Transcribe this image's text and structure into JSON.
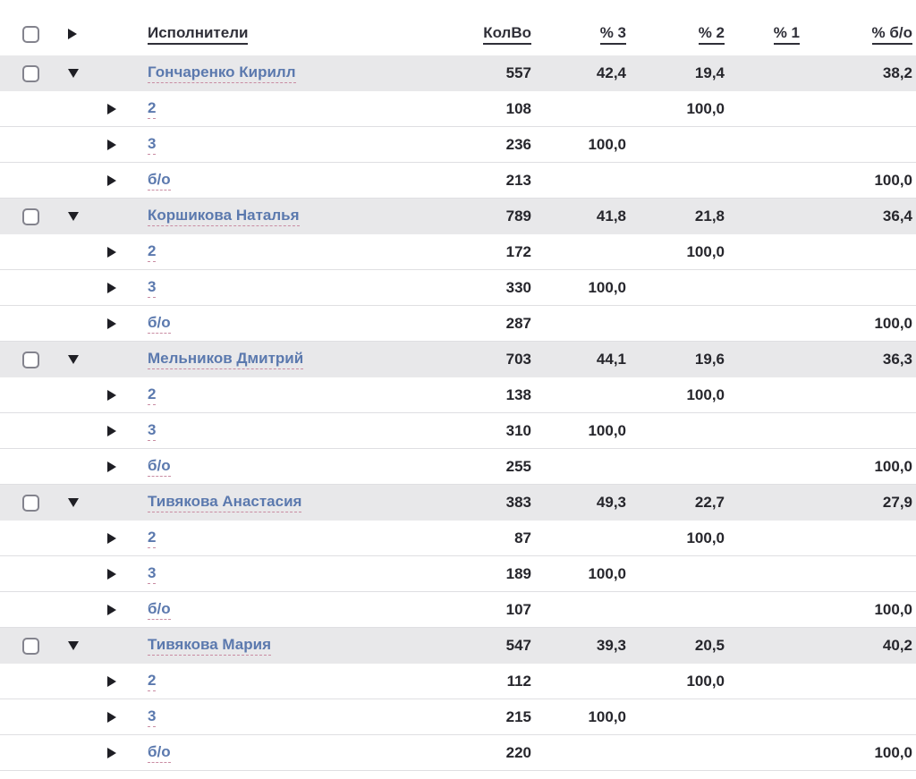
{
  "colors": {
    "link": "#5b79ae",
    "group_row_bg": "#e8e8ea",
    "text": "#26262c"
  },
  "table": {
    "columns": {
      "executors": "Исполнители",
      "count": "КолВо",
      "p3": "% 3",
      "p2": "% 2",
      "p1": "% 1",
      "pbo": "% б/о"
    },
    "groups": [
      {
        "name": "Гончаренко Кирилл",
        "count": "557",
        "p3": "42,4",
        "p2": "19,4",
        "p1": "",
        "pbo": "38,2",
        "children": [
          {
            "name": "2",
            "count": "108",
            "p3": "",
            "p2": "100,0",
            "p1": "",
            "pbo": ""
          },
          {
            "name": "3",
            "count": "236",
            "p3": "100,0",
            "p2": "",
            "p1": "",
            "pbo": ""
          },
          {
            "name": "б/о",
            "count": "213",
            "p3": "",
            "p2": "",
            "p1": "",
            "pbo": "100,0"
          }
        ]
      },
      {
        "name": "Коршикова Наталья",
        "count": "789",
        "p3": "41,8",
        "p2": "21,8",
        "p1": "",
        "pbo": "36,4",
        "children": [
          {
            "name": "2",
            "count": "172",
            "p3": "",
            "p2": "100,0",
            "p1": "",
            "pbo": ""
          },
          {
            "name": "3",
            "count": "330",
            "p3": "100,0",
            "p2": "",
            "p1": "",
            "pbo": ""
          },
          {
            "name": "б/о",
            "count": "287",
            "p3": "",
            "p2": "",
            "p1": "",
            "pbo": "100,0"
          }
        ]
      },
      {
        "name": "Мельников Дмитрий",
        "count": "703",
        "p3": "44,1",
        "p2": "19,6",
        "p1": "",
        "pbo": "36,3",
        "children": [
          {
            "name": "2",
            "count": "138",
            "p3": "",
            "p2": "100,0",
            "p1": "",
            "pbo": ""
          },
          {
            "name": "3",
            "count": "310",
            "p3": "100,0",
            "p2": "",
            "p1": "",
            "pbo": ""
          },
          {
            "name": "б/о",
            "count": "255",
            "p3": "",
            "p2": "",
            "p1": "",
            "pbo": "100,0"
          }
        ]
      },
      {
        "name": "Тивякова Анастасия",
        "count": "383",
        "p3": "49,3",
        "p2": "22,7",
        "p1": "",
        "pbo": "27,9",
        "children": [
          {
            "name": "2",
            "count": "87",
            "p3": "",
            "p2": "100,0",
            "p1": "",
            "pbo": ""
          },
          {
            "name": "3",
            "count": "189",
            "p3": "100,0",
            "p2": "",
            "p1": "",
            "pbo": ""
          },
          {
            "name": "б/о",
            "count": "107",
            "p3": "",
            "p2": "",
            "p1": "",
            "pbo": "100,0"
          }
        ]
      },
      {
        "name": "Тивякова Мария",
        "count": "547",
        "p3": "39,3",
        "p2": "20,5",
        "p1": "",
        "pbo": "40,2",
        "children": [
          {
            "name": "2",
            "count": "112",
            "p3": "",
            "p2": "100,0",
            "p1": "",
            "pbo": ""
          },
          {
            "name": "3",
            "count": "215",
            "p3": "100,0",
            "p2": "",
            "p1": "",
            "pbo": ""
          },
          {
            "name": "б/о",
            "count": "220",
            "p3": "",
            "p2": "",
            "p1": "",
            "pbo": "100,0"
          }
        ]
      }
    ]
  }
}
